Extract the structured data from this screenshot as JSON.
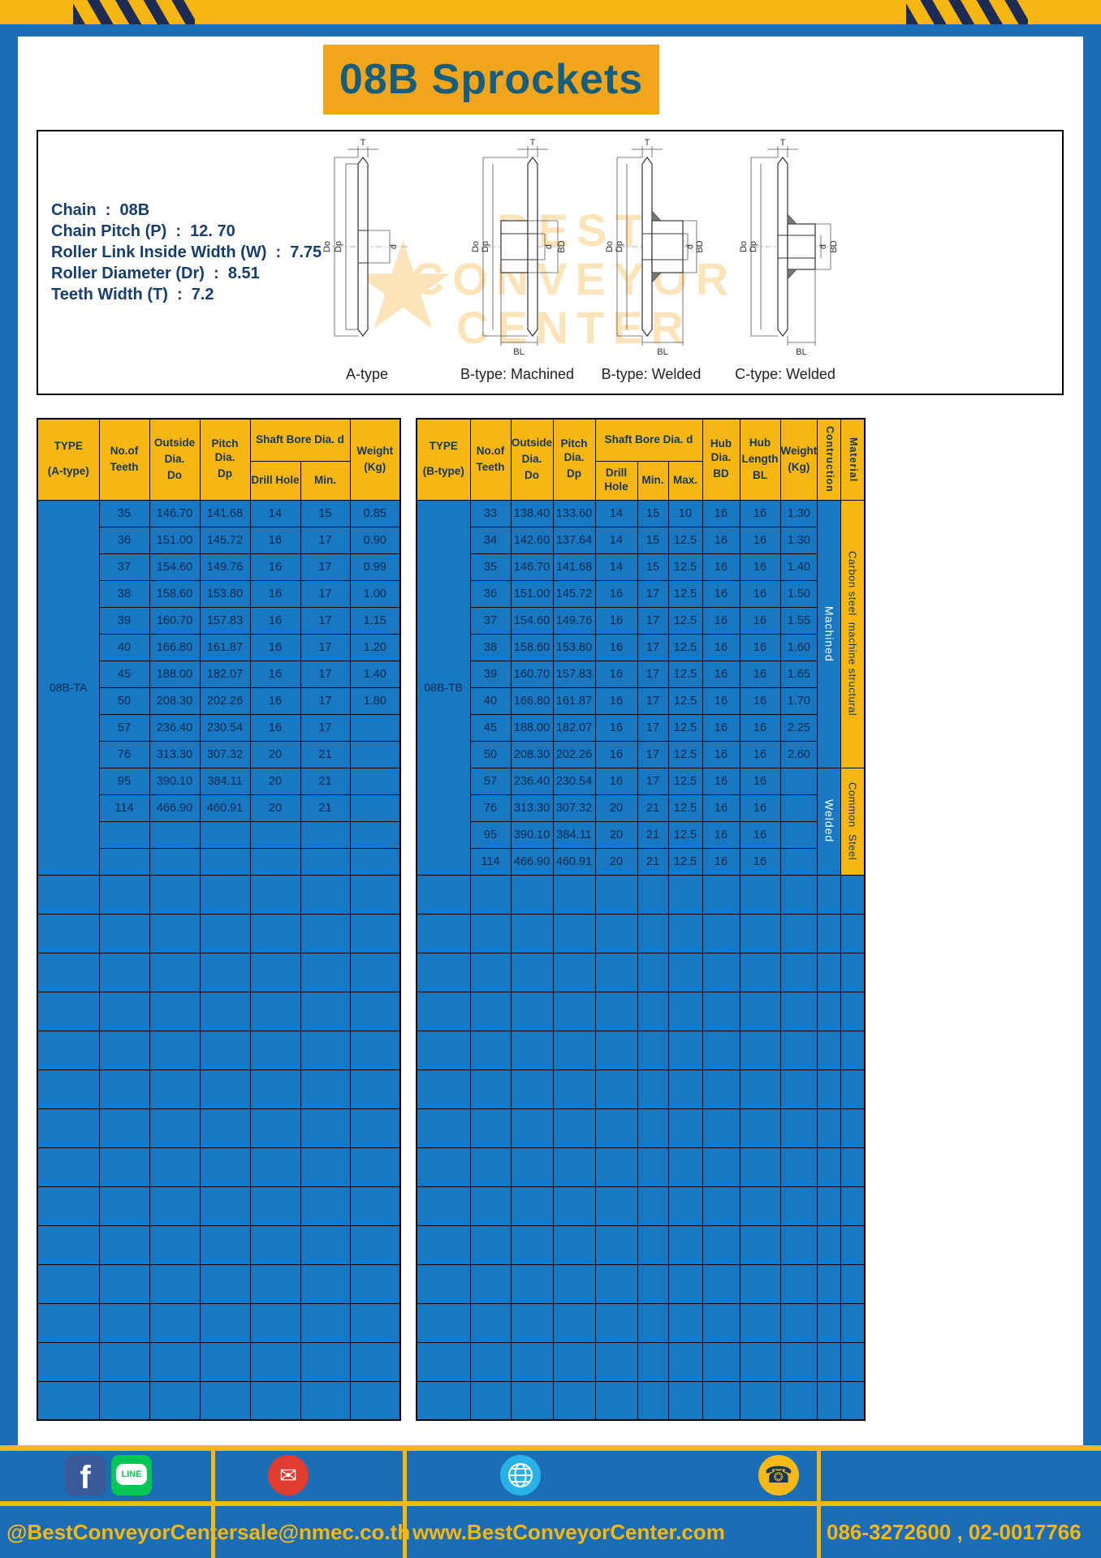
{
  "colors": {
    "page-blue": "#1b6db6",
    "table-blue": "#1878c2",
    "yellow": "#f7b713",
    "amber": "#f0a51d",
    "navy": "#1d2c55",
    "header-text": "#14365f",
    "cell-text": "#0d2a4e",
    "title-teal": "#175e7e",
    "spec-text": "#173e6b",
    "watermark": "#f2a71b",
    "fb-blue": "#3b5998",
    "line-green": "#06c755",
    "email-red": "#e23b2f",
    "globe-cyan": "#29b2e8",
    "phone-yellow": "#f5b915"
  },
  "title": "08B Sprockets",
  "specs": [
    "Chain  :  08B",
    "Chain Pitch (P)  :  12. 70",
    "Roller Link Inside Width (W)  :  7.75",
    "Roller Diameter (Dr)  :  8.51",
    "Teeth Width (T)  :  7.2"
  ],
  "watermark": {
    "star": "★",
    "lines": [
      "BEST",
      "CONVEYOR",
      "CENTER"
    ]
  },
  "drawings": [
    {
      "label": "A-type",
      "dims": {
        "t": "T",
        "do": "Do",
        "dp": "Dp",
        "d": "d"
      }
    },
    {
      "label": "B-type: Machined",
      "dims": {
        "t": "T",
        "do": "Do",
        "dp": "Dp",
        "d": "d",
        "bd": "BD",
        "bl": "BL"
      }
    },
    {
      "label": "B-type: Welded",
      "dims": {
        "t": "T",
        "do": "Do",
        "dp": "Dp",
        "d": "d",
        "bd": "BD",
        "bl": "BL"
      }
    },
    {
      "label": "C-type: Welded",
      "dims": {
        "t": "T",
        "do": "Do",
        "dp": "Dp",
        "d": "d",
        "bd": "BD",
        "bl": "BL"
      }
    }
  ],
  "tableA": {
    "type_title": "TYPE",
    "type_sub": "(A-type)",
    "type_value": "08B-TA",
    "headers": {
      "teeth": [
        "No.of",
        "Teeth"
      ],
      "outside": [
        "Outside",
        "Dia.",
        "Do"
      ],
      "pitch": [
        "Pitch Dia.",
        "Dp"
      ],
      "shaft": "Shaft Bore Dia. d",
      "drill": "Drill Hole",
      "min": "Min.",
      "weight": [
        "Weight",
        "(Kg)"
      ]
    },
    "rows": [
      [
        "35",
        "146.70",
        "141.68",
        "14",
        "15",
        "0.85"
      ],
      [
        "36",
        "151.00",
        "145.72",
        "16",
        "17",
        "0.90"
      ],
      [
        "37",
        "154.60",
        "149.76",
        "16",
        "17",
        "0.99"
      ],
      [
        "38",
        "158.60",
        "153.80",
        "16",
        "17",
        "1.00"
      ],
      [
        "39",
        "160.70",
        "157.83",
        "16",
        "17",
        "1.15"
      ],
      [
        "40",
        "166.80",
        "161.87",
        "16",
        "17",
        "1.20"
      ],
      [
        "45",
        "188.00",
        "182.07",
        "16",
        "17",
        "1.40"
      ],
      [
        "50",
        "208.30",
        "202.26",
        "16",
        "17",
        "1.80"
      ],
      [
        "57",
        "236.40",
        "230.54",
        "16",
        "17",
        ""
      ],
      [
        "76",
        "313.30",
        "307.32",
        "20",
        "21",
        ""
      ],
      [
        "95",
        "390.10",
        "384.11",
        "20",
        "21",
        ""
      ],
      [
        "114",
        "466.90",
        "460.91",
        "20",
        "21",
        ""
      ],
      [
        "",
        "",
        "",
        "",
        "",
        ""
      ],
      [
        "",
        "",
        "",
        "",
        "",
        ""
      ]
    ],
    "empty_rows": 14
  },
  "tableB": {
    "type_title": "TYPE",
    "type_sub": "(B-type)",
    "type_value": "08B-TB",
    "headers": {
      "teeth": [
        "No.of",
        "Teeth"
      ],
      "outside": [
        "Outside",
        "Dia.",
        "Do"
      ],
      "pitch": [
        "Pitch Dia.",
        "Dp"
      ],
      "shaft": "Shaft Bore Dia. d",
      "drill": "Drill Hole",
      "min": "Min.",
      "max": "Max.",
      "hub_dia": [
        "Hub Dia.",
        "BD"
      ],
      "hub_len": [
        "Hub",
        "Length",
        "BL"
      ],
      "weight": [
        "Weight",
        "(Kg)"
      ],
      "construction": "Contruction",
      "material": "Material"
    },
    "rows": [
      [
        "33",
        "138.40",
        "133.60",
        "14",
        "15",
        "10",
        "16",
        "16",
        "1.30"
      ],
      [
        "34",
        "142.60",
        "137.64",
        "14",
        "15",
        "12.5",
        "16",
        "16",
        "1.30"
      ],
      [
        "35",
        "146.70",
        "141.68",
        "14",
        "15",
        "12.5",
        "16",
        "16",
        "1.40"
      ],
      [
        "36",
        "151.00",
        "145.72",
        "16",
        "17",
        "12.5",
        "16",
        "16",
        "1.50"
      ],
      [
        "37",
        "154.60",
        "149.76",
        "16",
        "17",
        "12.5",
        "16",
        "16",
        "1.55"
      ],
      [
        "38",
        "158.60",
        "153.80",
        "16",
        "17",
        "12.5",
        "16",
        "16",
        "1.60"
      ],
      [
        "39",
        "160.70",
        "157.83",
        "16",
        "17",
        "12.5",
        "16",
        "16",
        "1.65"
      ],
      [
        "40",
        "166.80",
        "161.87",
        "16",
        "17",
        "12.5",
        "16",
        "16",
        "1.70"
      ],
      [
        "45",
        "188.00",
        "182.07",
        "16",
        "17",
        "12.5",
        "16",
        "16",
        "2.25"
      ],
      [
        "50",
        "208.30",
        "202.26",
        "16",
        "17",
        "12.5",
        "16",
        "16",
        "2.60"
      ],
      [
        "57",
        "236.40",
        "230.54",
        "16",
        "17",
        "12.5",
        "16",
        "16",
        ""
      ],
      [
        "76",
        "313.30",
        "307.32",
        "20",
        "21",
        "12.5",
        "16",
        "16",
        ""
      ],
      [
        "95",
        "390.10",
        "384.11",
        "20",
        "21",
        "12.5",
        "16",
        "16",
        ""
      ],
      [
        "114",
        "466.90",
        "460.91",
        "20",
        "21",
        "12.5",
        "16",
        "16",
        ""
      ]
    ],
    "construction_groups": [
      {
        "label": "Machined",
        "span": 10
      },
      {
        "label": "Welded",
        "span": 4
      }
    ],
    "material_groups": [
      {
        "label": "Carbon steel  machine structural",
        "span": 10
      },
      {
        "label": "Common  Steel",
        "span": 4
      }
    ],
    "empty_rows": 14
  },
  "footer": {
    "handle": "@BestConveyorCenter",
    "email": "sale@nmec.co.th",
    "website": "www.BestConveyorCenter.com",
    "phone": "086-3272600 , 02-0017766",
    "facebook_letter": "f",
    "line_text": "LINE",
    "email_glyph": "✉",
    "phone_glyph": "☎"
  }
}
